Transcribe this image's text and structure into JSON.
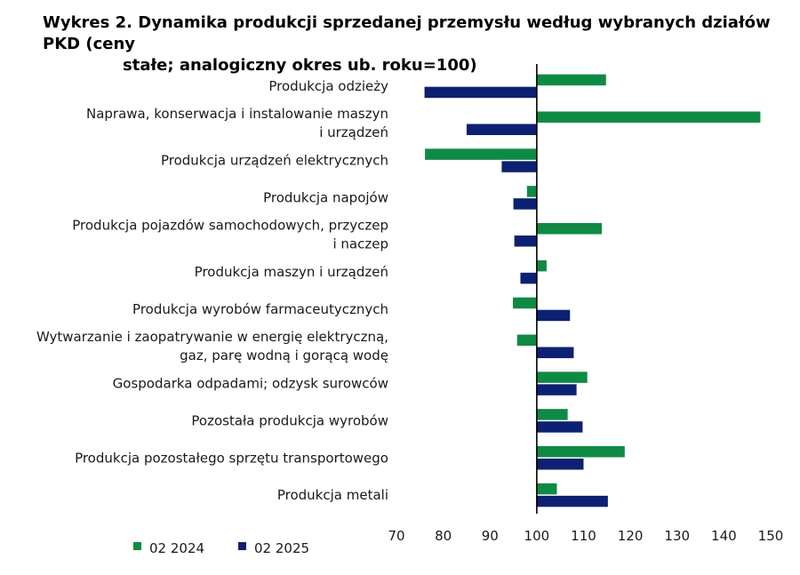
{
  "title": {
    "line1": "Wykres 2. Dynamika produkcji sprzedanej przemysłu według wybranych działów PKD (ceny",
    "line2": "stałe; analogiczny okres ub. roku=100)"
  },
  "chart_data": {
    "type": "bar",
    "orientation": "horizontal",
    "title": "Wykres 2. Dynamika produkcji sprzedanej przemysłu według wybranych działów PKD (ceny stałe; analogiczny okres ub. roku=100)",
    "categories": [
      [
        "Produkcja odzieży"
      ],
      [
        "Naprawa, konserwacja i instalowanie maszyn",
        "i urządzeń"
      ],
      [
        "Produkcja urządzeń elektrycznych"
      ],
      [
        "Produkcja napojów"
      ],
      [
        "Produkcja pojazdów samochodowych, przyczep",
        "i naczep"
      ],
      [
        "Produkcja maszyn i urządzeń"
      ],
      [
        "Produkcja wyrobów farmaceutycznych"
      ],
      [
        "Wytwarzanie i zaopatrywanie w energię elektryczną,",
        "gaz, parę wodną i gorącą wodę"
      ],
      [
        "Gospodarka odpadami; odzysk surowców"
      ],
      [
        "Pozostała produkcja wyrobów"
      ],
      [
        "Produkcja pozostałego sprzętu transportowego"
      ],
      [
        "Produkcja metali"
      ]
    ],
    "baseline": 100,
    "xlim": [
      70,
      150
    ],
    "xticks": [
      70,
      80,
      90,
      100,
      110,
      120,
      130,
      140,
      150
    ],
    "series": [
      {
        "name": "02 2024",
        "color": "#0f8a44",
        "values": [
          114.8,
          147.8,
          76.1,
          97.9,
          113.9,
          102.1,
          94.9,
          95.8,
          110.8,
          106.6,
          118.8,
          104.3
        ]
      },
      {
        "name": "02 2025",
        "color": "#0d2172",
        "values": [
          76.0,
          85.0,
          92.5,
          95.0,
          95.2,
          96.5,
          107.1,
          107.9,
          108.5,
          109.8,
          110.0,
          115.2
        ]
      }
    ],
    "legend_position": "bottom-left",
    "grid": false
  }
}
